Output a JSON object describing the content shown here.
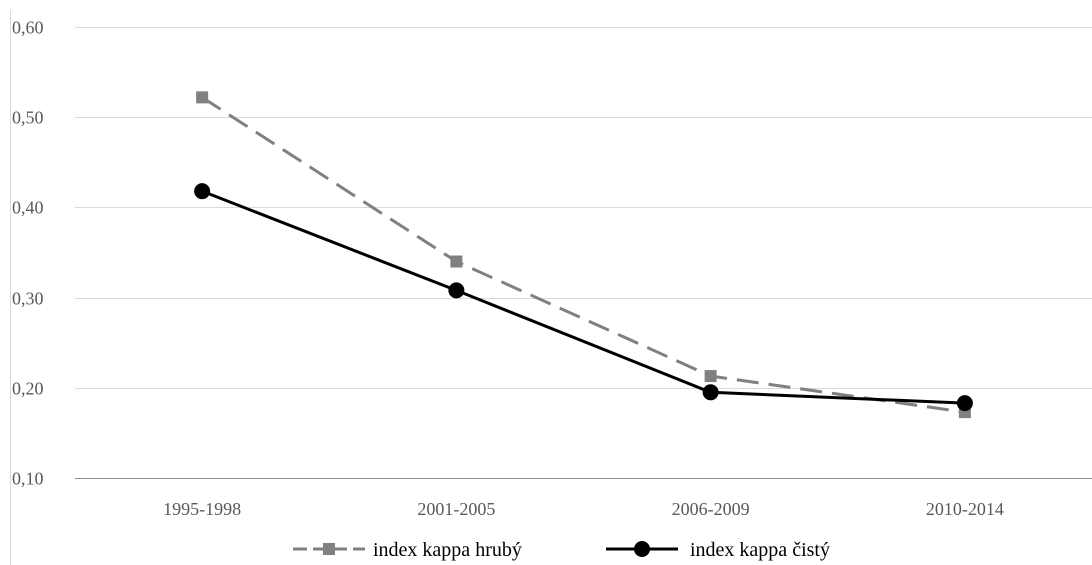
{
  "chart_data": {
    "type": "line",
    "categories": [
      "1995-1998",
      "2001-2005",
      "2006-2009",
      "2010-2014"
    ],
    "series": [
      {
        "name": "index kappa hrubý",
        "values": [
          0.522,
          0.34,
          0.213,
          0.173
        ],
        "color": "#808080",
        "line_style": "dashed",
        "marker": "square"
      },
      {
        "name": "index kappa čistý",
        "values": [
          0.418,
          0.308,
          0.195,
          0.183
        ],
        "color": "#000000",
        "line_style": "solid",
        "marker": "circle"
      }
    ],
    "ylim": [
      0.1,
      0.6
    ],
    "yticks": [
      0.1,
      0.2,
      0.3,
      0.4,
      0.5,
      0.6
    ],
    "ytick_labels": [
      "0,10",
      "0,20",
      "0,30",
      "0,40",
      "0,50",
      "0,60"
    ],
    "grid": true,
    "legend_position": "bottom",
    "title": "",
    "xlabel": "",
    "ylabel": ""
  }
}
